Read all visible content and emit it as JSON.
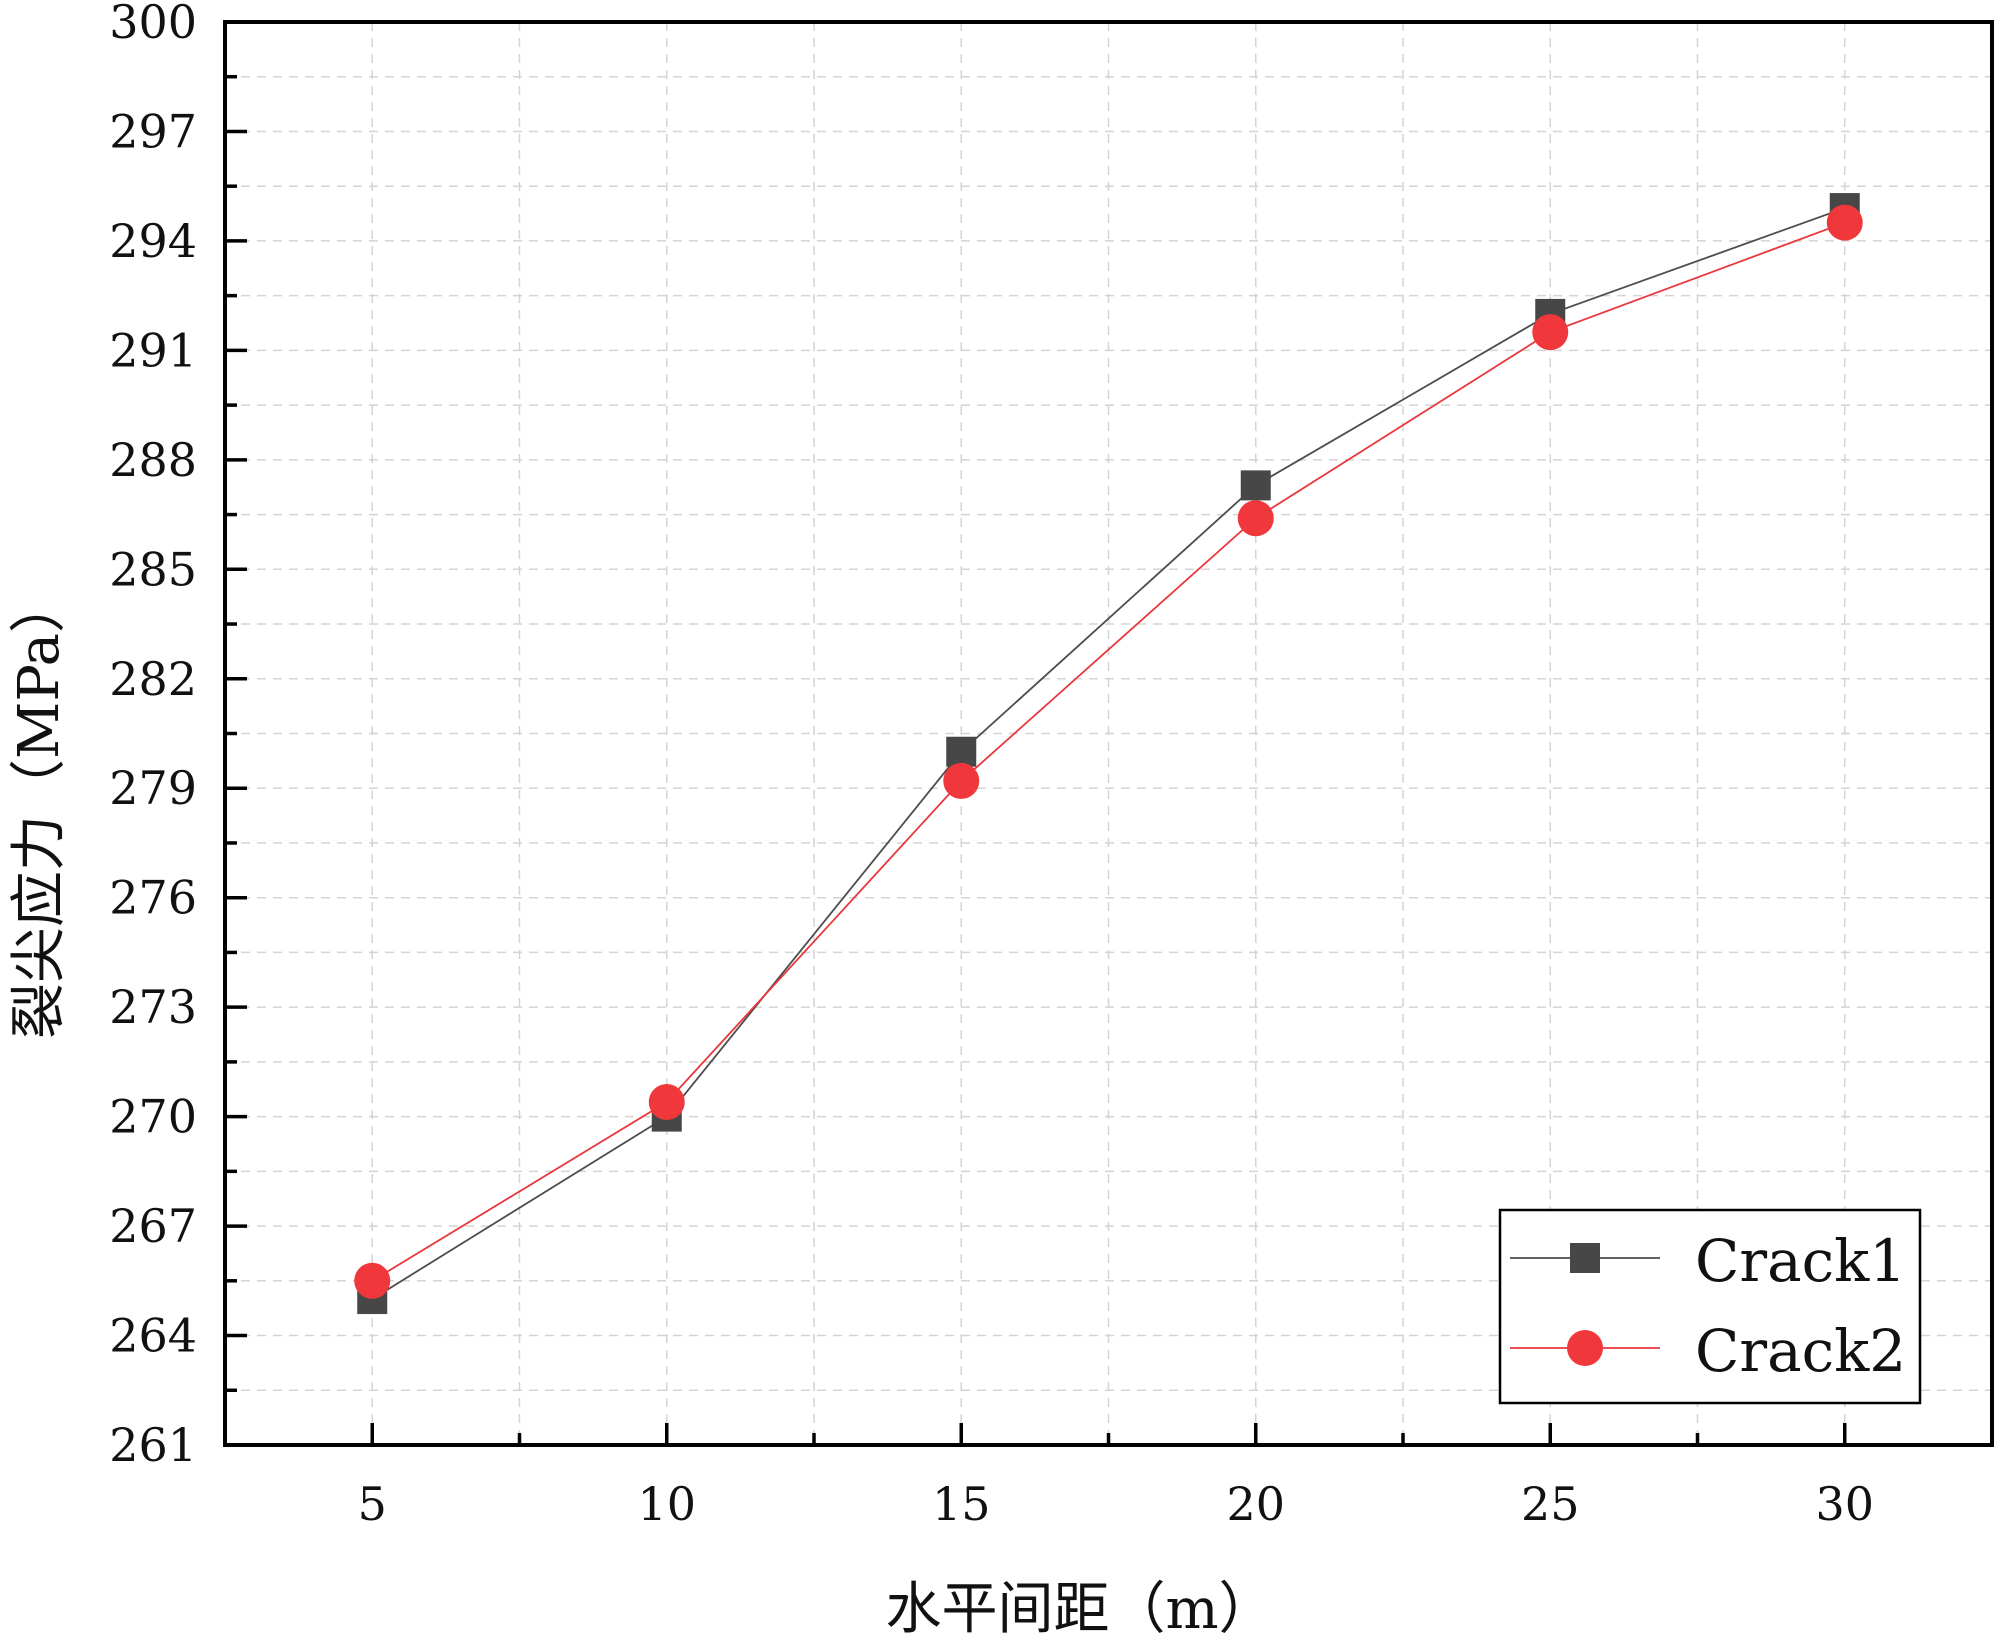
{
  "chart_data": {
    "type": "line",
    "title": "",
    "xlabel": "水平间距（m）",
    "ylabel": "裂尖应力（MPa）",
    "x": [
      5,
      10,
      15,
      20,
      25,
      30
    ],
    "xlim": [
      2.5,
      32.5
    ],
    "ylim": [
      261,
      300
    ],
    "x_ticks": [
      5,
      10,
      15,
      20,
      25,
      30
    ],
    "y_ticks": [
      261,
      264,
      267,
      270,
      273,
      276,
      279,
      282,
      285,
      288,
      291,
      294,
      297,
      300
    ],
    "grid": true,
    "legend_position": "bottom-right",
    "series": [
      {
        "name": "Crack1",
        "marker": "square",
        "color": "#474747",
        "line_color": "#4d4d4d",
        "values": [
          265.0,
          270.0,
          280.0,
          287.3,
          292.0,
          294.9
        ]
      },
      {
        "name": "Crack2",
        "marker": "circle",
        "color": "#f0383c",
        "line_color": "#e8383c",
        "values": [
          265.5,
          270.4,
          279.2,
          286.4,
          291.5,
          294.5
        ]
      }
    ]
  }
}
